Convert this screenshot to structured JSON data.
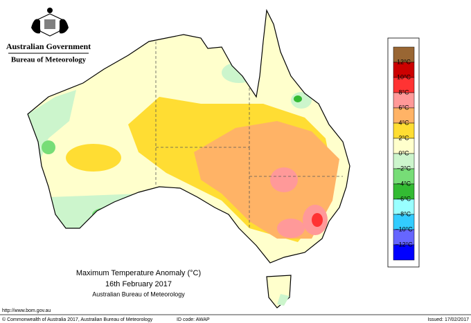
{
  "header": {
    "government": "Australian Government",
    "bureau": "Bureau of Meteorology"
  },
  "legend": {
    "colors": [
      "#996633",
      "#cc0000",
      "#ff3333",
      "#ff9999",
      "#ffb366",
      "#ffdd33",
      "#ffffcc",
      "#ccf5cc",
      "#77dd77",
      "#33bb33",
      "#99ffff",
      "#33ccff",
      "#6666ff",
      "#0000ff"
    ],
    "labels": [
      "12°C",
      "10°C",
      "8°C",
      "6°C",
      "4°C",
      "2°C",
      "0°C",
      "−2°C",
      "−4°C",
      "−6°C",
      "−8°C",
      "−10°C",
      "−12°C"
    ]
  },
  "title": {
    "line1": "Maximum Temperature Anomaly (°C)",
    "line2": "16th February 2017",
    "line3": "Australian Bureau of Meteorology"
  },
  "footer": {
    "url": "http://www.bom.gov.au",
    "copyright": "© Commonwealth of Australia 2017, Australian Bureau of Meteorology",
    "id_code": "ID code: AWAP",
    "issued": "Issued: 17/02/2017"
  }
}
